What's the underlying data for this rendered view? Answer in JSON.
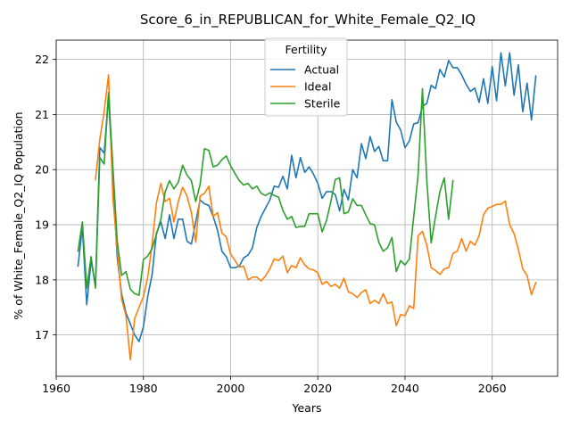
{
  "chart_data": {
    "type": "line",
    "title": "Score_6_in_REPUBLICAN_for_White_Female_Q2_IQ",
    "xlabel": "Years",
    "ylabel": "% of White_Female_Q2_IQ Population",
    "xlim": [
      1960,
      2075
    ],
    "ylim": [
      16.25,
      22.35
    ],
    "xticks": [
      1960,
      1980,
      2000,
      2020,
      2040,
      2060
    ],
    "yticks": [
      17,
      18,
      19,
      20,
      21,
      22
    ],
    "grid": true,
    "legend": {
      "title": "Fertility",
      "position": "upper-center"
    },
    "series": [
      {
        "name": "Actual",
        "color": "#1f77b4",
        "x": [
          1965,
          1966,
          1967,
          1968,
          1969,
          1970,
          1971,
          1972,
          1973,
          1974,
          1975,
          1976,
          1977,
          1978,
          1979,
          1980,
          1981,
          1982,
          1983,
          1984,
          1985,
          1986,
          1987,
          1988,
          1989,
          1990,
          1991,
          1992,
          1993,
          1994,
          1995,
          1996,
          1997,
          1998,
          1999,
          2000,
          2001,
          2002,
          2003,
          2004,
          2005,
          2006,
          2007,
          2008,
          2009,
          2010,
          2011,
          2012,
          2013,
          2014,
          2015,
          2016,
          2017,
          2018,
          2019,
          2020,
          2021,
          2022,
          2023,
          2024,
          2025,
          2026,
          2027,
          2028,
          2029,
          2030,
          2031,
          2032,
          2033,
          2034,
          2035,
          2036,
          2037,
          2038,
          2039,
          2040,
          2041,
          2042,
          2043,
          2044,
          2045,
          2046,
          2047,
          2048,
          2049,
          2050,
          2051,
          2052,
          2053,
          2054,
          2055,
          2056,
          2057,
          2058,
          2059,
          2060,
          2061,
          2062,
          2063,
          2064,
          2065,
          2066,
          2067,
          2068,
          2069,
          2070
        ],
        "values": [
          18.25,
          18.95,
          17.55,
          18.35,
          17.9,
          20.4,
          20.3,
          21.35,
          19.8,
          18.4,
          17.75,
          17.4,
          17.2,
          17.0,
          16.88,
          17.15,
          17.7,
          18.1,
          18.85,
          19.05,
          18.75,
          19.18,
          18.75,
          19.1,
          19.1,
          18.7,
          18.65,
          19.05,
          19.45,
          19.38,
          19.35,
          19.15,
          18.9,
          18.52,
          18.42,
          18.22,
          18.22,
          18.25,
          18.4,
          18.45,
          18.58,
          18.95,
          19.15,
          19.3,
          19.45,
          19.7,
          19.68,
          19.88,
          19.65,
          20.26,
          19.85,
          20.22,
          19.95,
          20.05,
          19.92,
          19.75,
          19.48,
          19.6,
          19.6,
          19.55,
          19.25,
          19.64,
          19.45,
          20.0,
          19.85,
          20.47,
          20.2,
          20.6,
          20.33,
          20.42,
          20.16,
          20.16,
          21.27,
          20.86,
          20.72,
          20.4,
          20.52,
          20.83,
          20.85,
          21.15,
          21.2,
          21.53,
          21.47,
          21.82,
          21.68,
          21.98,
          21.85,
          21.85,
          21.72,
          21.55,
          21.42,
          21.48,
          21.22,
          21.65,
          21.2,
          21.87,
          21.25,
          22.12,
          21.52,
          22.12,
          21.35,
          21.9,
          21.05,
          21.57,
          20.9,
          21.7
        ]
      },
      {
        "name": "Ideal",
        "color": "#ff7f0e",
        "x": [
          1969,
          1970,
          1971,
          1972,
          1973,
          1974,
          1975,
          1976,
          1977,
          1978,
          1979,
          1980,
          1981,
          1982,
          1983,
          1984,
          1985,
          1986,
          1987,
          1988,
          1989,
          1990,
          1991,
          1992,
          1993,
          1994,
          1995,
          1996,
          1997,
          1998,
          1999,
          2000,
          2001,
          2002,
          2003,
          2004,
          2005,
          2006,
          2007,
          2008,
          2009,
          2010,
          2011,
          2012,
          2013,
          2014,
          2015,
          2016,
          2017,
          2018,
          2019,
          2020,
          2021,
          2022,
          2023,
          2024,
          2025,
          2026,
          2027,
          2028,
          2029,
          2030,
          2031,
          2032,
          2033,
          2034,
          2035,
          2036,
          2037,
          2038,
          2039,
          2040,
          2041,
          2042,
          2043,
          2044,
          2045,
          2046,
          2047,
          2048,
          2049,
          2050,
          2051,
          2052,
          2053,
          2054,
          2055,
          2056,
          2057,
          2058,
          2059,
          2060,
          2061,
          2062,
          2063,
          2064,
          2065,
          2066,
          2067,
          2068,
          2069,
          2070
        ],
        "values": [
          19.82,
          20.55,
          21.05,
          21.72,
          19.5,
          18.55,
          17.65,
          17.35,
          16.55,
          17.3,
          17.5,
          17.7,
          18.05,
          18.65,
          19.4,
          19.75,
          19.42,
          19.48,
          19.05,
          19.42,
          19.68,
          19.52,
          19.22,
          18.68,
          19.52,
          19.57,
          19.7,
          19.15,
          19.22,
          18.85,
          18.78,
          18.47,
          18.35,
          18.23,
          18.25,
          18.0,
          18.05,
          18.05,
          17.98,
          18.07,
          18.2,
          18.38,
          18.35,
          18.43,
          18.13,
          18.26,
          18.22,
          18.4,
          18.27,
          18.2,
          18.18,
          18.13,
          17.92,
          17.97,
          17.88,
          17.92,
          17.85,
          18.03,
          17.78,
          17.75,
          17.68,
          17.77,
          17.82,
          17.57,
          17.63,
          17.57,
          17.75,
          17.57,
          17.6,
          17.17,
          17.37,
          17.35,
          17.53,
          17.48,
          18.8,
          18.88,
          18.63,
          18.22,
          18.17,
          18.1,
          18.2,
          18.22,
          18.48,
          18.52,
          18.75,
          18.52,
          18.7,
          18.63,
          18.8,
          19.18,
          19.3,
          19.33,
          19.37,
          19.37,
          19.43,
          19.0,
          18.84,
          18.55,
          18.2,
          18.08,
          17.73,
          17.95
        ]
      },
      {
        "name": "Sterile",
        "color": "#2ca02c",
        "x": [
          1965,
          1966,
          1967,
          1968,
          1969,
          1970,
          1971,
          1972,
          1973,
          1974,
          1975,
          1976,
          1977,
          1978,
          1979,
          1980,
          1981,
          1982,
          1983,
          1984,
          1985,
          1986,
          1987,
          1988,
          1989,
          1990,
          1991,
          1992,
          1993,
          1994,
          1995,
          1996,
          1997,
          1998,
          1999,
          2000,
          2001,
          2002,
          2003,
          2004,
          2005,
          2006,
          2007,
          2008,
          2009,
          2010,
          2011,
          2012,
          2013,
          2014,
          2015,
          2016,
          2017,
          2018,
          2019,
          2020,
          2021,
          2022,
          2023,
          2024,
          2025,
          2026,
          2027,
          2028,
          2029,
          2030,
          2031,
          2032,
          2033,
          2034,
          2035,
          2036,
          2037,
          2038,
          2039,
          2040,
          2041,
          2042,
          2043,
          2044,
          2045,
          2046,
          2047,
          2048,
          2049,
          2050,
          2051
        ],
        "values": [
          18.52,
          19.05,
          17.85,
          18.42,
          17.85,
          20.22,
          20.1,
          21.4,
          20.05,
          18.7,
          18.08,
          18.15,
          17.83,
          17.75,
          17.72,
          18.37,
          18.43,
          18.57,
          18.83,
          19.1,
          19.6,
          19.8,
          19.65,
          19.77,
          20.08,
          19.9,
          19.8,
          19.42,
          19.73,
          20.38,
          20.35,
          20.05,
          20.08,
          20.18,
          20.25,
          20.07,
          19.93,
          19.8,
          19.72,
          19.75,
          19.65,
          19.7,
          19.57,
          19.53,
          19.58,
          19.53,
          19.5,
          19.26,
          19.1,
          19.15,
          18.95,
          18.97,
          18.97,
          19.2,
          19.2,
          19.2,
          18.87,
          19.08,
          19.42,
          19.82,
          19.85,
          19.2,
          19.23,
          19.47,
          19.35,
          19.35,
          19.18,
          19.02,
          19.0,
          18.68,
          18.52,
          18.58,
          18.77,
          18.15,
          18.35,
          18.27,
          18.38,
          19.15,
          19.9,
          21.47,
          19.8,
          18.67,
          19.15,
          19.6,
          19.85,
          19.1,
          19.8
        ]
      }
    ]
  }
}
